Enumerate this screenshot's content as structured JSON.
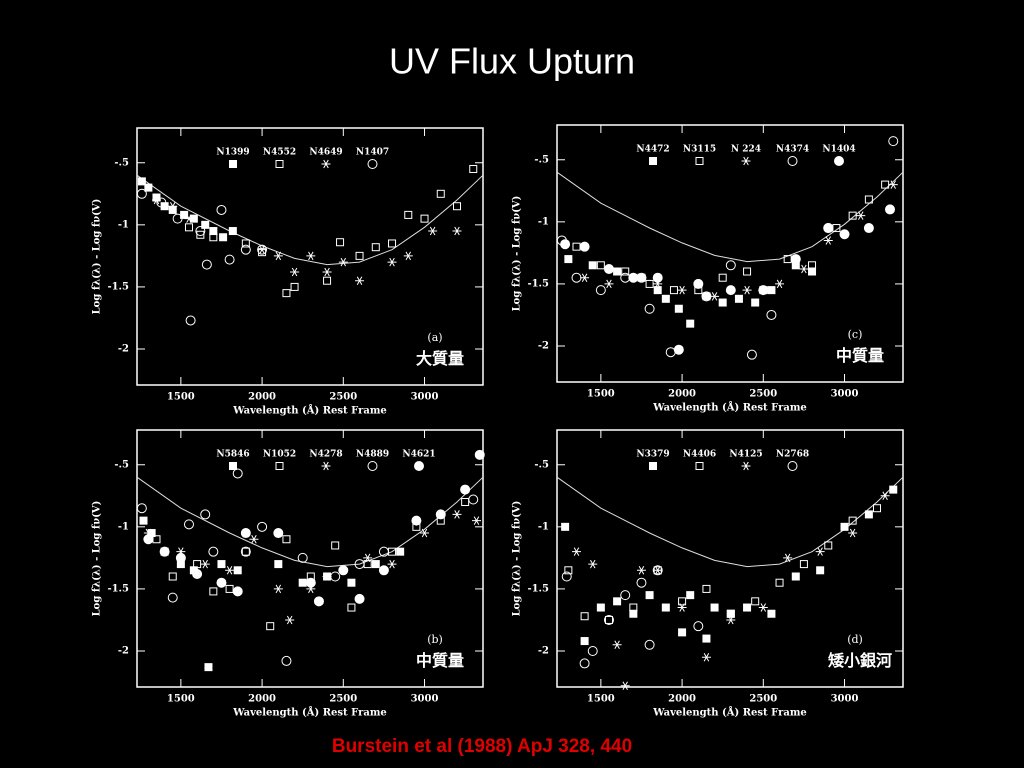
{
  "title": "UV Flux Upturn",
  "citation": "Burstein et al (1988) ApJ 328, 440",
  "chart_data": [
    {
      "type": "scatter",
      "panel_label": "(a)",
      "annotation": "大質量",
      "xlabel": "Wavelength (Å) Rest Frame",
      "ylabel": "Log fλ(λ) - Log fν(V)",
      "xlim": [
        1230,
        3360
      ],
      "ylim": [
        -2.29,
        -0.22
      ],
      "xticks": [
        1500,
        2000,
        2500,
        3000
      ],
      "yticks": [
        {
          "value": -0.5,
          "label": "-.5"
        },
        -1,
        -1.5,
        -2
      ],
      "curve": {
        "x": [
          1230,
          1500,
          1800,
          2000,
          2200,
          2400,
          2600,
          2800,
          3000,
          3200,
          3360
        ],
        "values": [
          -0.6,
          -0.85,
          -1.05,
          -1.17,
          -1.27,
          -1.32,
          -1.3,
          -1.2,
          -1.02,
          -0.8,
          -0.6
        ]
      },
      "series": [
        {
          "name": "N1399",
          "marker": "filled-square",
          "color": "#ffffff",
          "x": [
            1260,
            1300,
            1350,
            1400,
            1450,
            1520,
            1580,
            1650,
            1700,
            1760,
            1820
          ],
          "values": [
            -0.65,
            -0.7,
            -0.78,
            -0.85,
            -0.88,
            -0.92,
            -0.95,
            -1,
            -1.05,
            -1.1,
            -1.05
          ]
        },
        {
          "name": "N4552",
          "marker": "open-square",
          "color": "#ffffff",
          "x": [
            1550,
            1620,
            1700,
            1900,
            2000,
            2150,
            2200,
            2400,
            2480,
            2600,
            2700,
            2800,
            2900,
            3000,
            3100,
            3200,
            3300
          ],
          "values": [
            -1.02,
            -1.08,
            -1.1,
            -1.15,
            -1.22,
            -1.55,
            -1.5,
            -1.45,
            -1.14,
            -1.25,
            -1.18,
            -1.15,
            -0.92,
            -0.95,
            -0.75,
            -0.85,
            -0.55
          ]
        },
        {
          "name": "N4649",
          "marker": "asterisk",
          "color": "#ffffff",
          "x": [
            1350,
            1450,
            1550,
            2000,
            2100,
            2200,
            2300,
            2400,
            2500,
            2600,
            2800,
            2900,
            3050,
            3200
          ],
          "values": [
            -0.8,
            -0.85,
            -0.95,
            -1.2,
            -1.25,
            -1.38,
            -1.25,
            -1.38,
            -1.3,
            -1.45,
            -1.3,
            -1.25,
            -1.05,
            -1.05
          ]
        },
        {
          "name": "N1407",
          "marker": "open-circle",
          "color": "#ffffff",
          "x": [
            1260,
            1380,
            1480,
            1560,
            1620,
            1660,
            1750,
            1800,
            1900,
            2000
          ],
          "values": [
            -0.75,
            -0.82,
            -0.95,
            -1.77,
            -1.05,
            -1.32,
            -0.88,
            -1.28,
            -1.2,
            -1.2
          ]
        }
      ]
    },
    {
      "type": "scatter",
      "panel_label": "(b)",
      "annotation": "中質量",
      "xlabel": "Wavelength (Å) Rest Frame",
      "ylabel": "Log fλ(λ) - Log fν(V)",
      "xlim": [
        1230,
        3360
      ],
      "ylim": [
        -2.29,
        -0.22
      ],
      "xticks": [
        1500,
        2000,
        2500,
        3000
      ],
      "yticks": [
        {
          "value": -0.5,
          "label": "-.5"
        },
        -1,
        -1.5,
        -2
      ],
      "curve": {
        "x": [
          1230,
          1500,
          1800,
          2000,
          2200,
          2400,
          2600,
          2800,
          3000,
          3200,
          3360
        ],
        "values": [
          -0.6,
          -0.85,
          -1.05,
          -1.17,
          -1.27,
          -1.32,
          -1.3,
          -1.2,
          -1.02,
          -0.8,
          -0.6
        ]
      },
      "series": [
        {
          "name": "N5846",
          "marker": "filled-square",
          "color": "#ffffff",
          "x": [
            1270,
            1320,
            1400,
            1500,
            1580,
            1670,
            1750,
            1850,
            2100,
            2250,
            2400,
            2550,
            2700,
            2850
          ],
          "values": [
            -0.95,
            -1.05,
            -1.2,
            -1.3,
            -1.35,
            -2.13,
            -1.3,
            -1.35,
            -1.3,
            -1.45,
            -1.4,
            -1.45,
            -1.3,
            -1.2
          ]
        },
        {
          "name": "N1052",
          "marker": "open-square",
          "color": "#ffffff",
          "x": [
            1350,
            1450,
            1600,
            1700,
            1800,
            1900,
            2050,
            2150,
            2300,
            2450,
            2550,
            2650,
            2800,
            2950,
            3100,
            3250
          ],
          "values": [
            -1.1,
            -1.4,
            -1.3,
            -1.52,
            -1.5,
            -1.2,
            -1.8,
            -1.1,
            -1.4,
            -1.15,
            -1.65,
            -1.3,
            -1.2,
            -1.0,
            -0.95,
            -0.8
          ]
        },
        {
          "name": "N4278",
          "marker": "asterisk",
          "color": "#ffffff",
          "x": [
            1300,
            1500,
            1650,
            1800,
            1950,
            2100,
            2170,
            2300,
            2400,
            2500,
            2650,
            2800,
            3000,
            3200,
            3320
          ],
          "values": [
            -1.05,
            -1.2,
            -1.3,
            -1.35,
            -1.1,
            -1.5,
            -1.75,
            -1.5,
            -1.4,
            -1.35,
            -1.25,
            -1.3,
            -1.05,
            -0.9,
            -0.95
          ]
        },
        {
          "name": "N4889",
          "marker": "open-circle",
          "color": "#ffffff",
          "x": [
            1260,
            1450,
            1550,
            1650,
            1700,
            1850,
            1900,
            2000,
            2150,
            2250,
            2450,
            2600,
            2750,
            3300
          ],
          "values": [
            -0.85,
            -1.57,
            -0.98,
            -0.9,
            -1.2,
            -0.57,
            -1.2,
            -1.0,
            -2.08,
            -1.25,
            -1.4,
            -1.3,
            -1.2,
            -0.78
          ]
        },
        {
          "name": "N4621",
          "marker": "filled-circle",
          "color": "#ffffff",
          "x": [
            1300,
            1400,
            1500,
            1600,
            1750,
            1850,
            1900,
            2100,
            2300,
            2350,
            2500,
            2600,
            2750,
            2950,
            3100,
            3250,
            3340
          ],
          "values": [
            -1.1,
            -1.2,
            -1.25,
            -1.38,
            -1.45,
            -1.52,
            -1.05,
            -1.05,
            -1.45,
            -1.6,
            -1.35,
            -1.58,
            -1.35,
            -0.95,
            -0.9,
            -0.7,
            -0.42
          ]
        }
      ]
    },
    {
      "type": "scatter",
      "panel_label": "(c)",
      "annotation": "中質量",
      "xlabel": "Wavelength (Å) Rest Frame",
      "ylabel": "Log fλ(λ) - Log fν(V)",
      "xlim": [
        1230,
        3360
      ],
      "ylim": [
        -2.29,
        -0.22
      ],
      "xticks": [
        1500,
        2000,
        2500,
        3000
      ],
      "yticks": [
        {
          "value": -0.5,
          "label": "-.5"
        },
        -1,
        -1.5,
        -2
      ],
      "curve": {
        "x": [
          1230,
          1500,
          1800,
          2000,
          2200,
          2400,
          2600,
          2800,
          3000,
          3200,
          3360
        ],
        "values": [
          -0.6,
          -0.85,
          -1.05,
          -1.17,
          -1.27,
          -1.32,
          -1.3,
          -1.2,
          -1.02,
          -0.8,
          -0.6
        ]
      },
      "series": [
        {
          "name": "N4472",
          "marker": "filled-square",
          "color": "#ffffff",
          "x": [
            1300,
            1450,
            1600,
            1750,
            1850,
            1900,
            1980,
            2050,
            2150,
            2250,
            2350,
            2450,
            2550,
            2700,
            2800
          ],
          "values": [
            -1.3,
            -1.35,
            -1.4,
            -1.45,
            -1.55,
            -1.62,
            -1.7,
            -1.82,
            -1.6,
            -1.65,
            -1.62,
            -1.65,
            -1.55,
            -1.35,
            -1.4
          ]
        },
        {
          "name": "N3115",
          "marker": "open-square",
          "color": "#ffffff",
          "x": [
            1350,
            1500,
            1650,
            1800,
            1950,
            2100,
            2250,
            2400,
            2500,
            2650,
            2800,
            2950,
            3050,
            3150,
            3250
          ],
          "values": [
            -1.2,
            -1.35,
            -1.4,
            -1.5,
            -1.55,
            -1.55,
            -1.45,
            -1.4,
            -1.55,
            -1.3,
            -1.35,
            -1.05,
            -0.95,
            -0.82,
            -0.7
          ]
        },
        {
          "name": "N 224",
          "marker": "asterisk",
          "color": "#ffffff",
          "x": [
            1400,
            1550,
            1700,
            1850,
            2000,
            2200,
            2400,
            2600,
            2750,
            2900,
            3100,
            3300
          ],
          "values": [
            -1.45,
            -1.5,
            -1.45,
            -1.5,
            -1.55,
            -1.6,
            -1.55,
            -1.5,
            -1.38,
            -1.15,
            -0.95,
            -0.7
          ]
        },
        {
          "name": "N4374",
          "marker": "open-circle",
          "color": "#ffffff",
          "x": [
            1260,
            1350,
            1500,
            1650,
            1750,
            1800,
            1930,
            2150,
            2300,
            2430,
            2550,
            2900,
            3300
          ],
          "values": [
            -1.15,
            -1.45,
            -1.55,
            -1.45,
            -1.45,
            -1.7,
            -2.05,
            -1.6,
            -1.35,
            -2.07,
            -1.75,
            -1.05,
            -0.35
          ]
        },
        {
          "name": "N1404",
          "marker": "filled-circle",
          "color": "#ffffff",
          "x": [
            1280,
            1400,
            1550,
            1700,
            1850,
            1980,
            2100,
            2300,
            2500,
            2700,
            2900,
            3000,
            3150,
            3280
          ],
          "values": [
            -1.18,
            -1.2,
            -1.38,
            -1.45,
            -1.45,
            -2.03,
            -1.5,
            -1.55,
            -1.55,
            -1.3,
            -1.05,
            -1.1,
            -1.05,
            -0.9
          ]
        }
      ]
    },
    {
      "type": "scatter",
      "panel_label": "(d)",
      "annotation": "矮小銀河",
      "xlabel": "Wavelength (Å) Rest Frame",
      "ylabel": "Log fλ(λ) - Log fν(V)",
      "xlim": [
        1230,
        3360
      ],
      "ylim": [
        -2.29,
        -0.22
      ],
      "xticks": [
        1500,
        2000,
        2500,
        3000
      ],
      "yticks": [
        {
          "value": -0.5,
          "label": "-.5"
        },
        -1,
        -1.5,
        -2
      ],
      "curve": {
        "x": [
          1230,
          1500,
          1800,
          2000,
          2200,
          2400,
          2600,
          2800,
          3000,
          3200,
          3360
        ],
        "values": [
          -0.6,
          -0.85,
          -1.05,
          -1.17,
          -1.27,
          -1.32,
          -1.3,
          -1.2,
          -1.02,
          -0.8,
          -0.6
        ]
      },
      "series": [
        {
          "name": "N3379",
          "marker": "filled-square",
          "color": "#ffffff",
          "x": [
            1280,
            1400,
            1500,
            1600,
            1700,
            1800,
            1900,
            2000,
            2050,
            2150,
            2200,
            2300,
            2400,
            2550,
            2700,
            2850,
            3000,
            3150,
            3300
          ],
          "values": [
            -1.0,
            -1.92,
            -1.65,
            -1.6,
            -1.7,
            -1.55,
            -1.65,
            -1.85,
            -1.55,
            -1.9,
            -1.65,
            -1.7,
            -1.65,
            -1.7,
            -1.4,
            -1.35,
            -1.0,
            -0.9,
            -0.7
          ]
        },
        {
          "name": "N4406",
          "marker": "open-square",
          "color": "#ffffff",
          "x": [
            1300,
            1400,
            1550,
            1700,
            1850,
            2000,
            2150,
            2300,
            2450,
            2600,
            2750,
            2900,
            3050,
            3200
          ],
          "values": [
            -1.35,
            -1.72,
            -1.75,
            -1.65,
            -1.35,
            -1.6,
            -1.5,
            -1.7,
            -1.6,
            -1.45,
            -1.3,
            -1.15,
            -0.95,
            -0.85
          ]
        },
        {
          "name": "N4125",
          "marker": "asterisk",
          "color": "#ffffff",
          "x": [
            1350,
            1450,
            1600,
            1650,
            1750,
            1850,
            2000,
            2150,
            2300,
            2500,
            2650,
            2850,
            3050,
            3250
          ],
          "values": [
            -1.2,
            -1.3,
            -1.95,
            -2.28,
            -1.35,
            -1.35,
            -1.65,
            -2.05,
            -1.75,
            -1.65,
            -1.25,
            -1.2,
            -1.05,
            -0.75
          ]
        },
        {
          "name": "N2768",
          "marker": "open-circle",
          "color": "#ffffff",
          "x": [
            1290,
            1400,
            1450,
            1550,
            1650,
            1750,
            1800,
            1850,
            2100
          ],
          "values": [
            -1.4,
            -2.1,
            -2.0,
            -1.75,
            -1.55,
            -1.45,
            -1.95,
            -1.35,
            -1.8
          ]
        }
      ]
    }
  ]
}
